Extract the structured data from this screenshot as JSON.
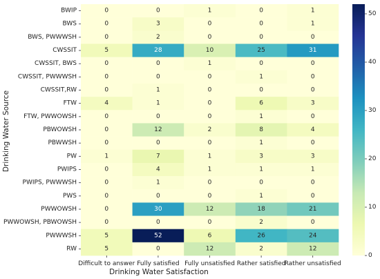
{
  "chart_data": {
    "type": "heatmap",
    "title": "",
    "xlabel": "Drinking Water Satisfaction",
    "ylabel": "Drinking Water Source",
    "x_categories": [
      "Difficult to answer",
      "Fully satisfied",
      "Fully unsatisfied",
      "Rather satisfied",
      "Rather unsatisfied"
    ],
    "y_categories": [
      "BWIP",
      "BWS",
      "BWS, PWWWSH",
      "CWSSIT",
      "CWSSIT, BWS",
      "CWSSIT, PWWWSH",
      "CWSSIT,RW",
      "FTW",
      "FTW, PWWOWSH",
      "PBWOWSH",
      "PBWWSH",
      "PW",
      "PWIPS",
      "PWIPS, PWWWSH",
      "PWS",
      "PWWOWSH",
      "PWWOWSH, PBWOWSH",
      "PWWWSH",
      "RW"
    ],
    "values": [
      [
        0,
        0,
        1,
        0,
        1
      ],
      [
        0,
        3,
        0,
        0,
        1
      ],
      [
        0,
        2,
        0,
        0,
        0
      ],
      [
        5,
        28,
        10,
        25,
        31
      ],
      [
        0,
        0,
        1,
        0,
        0
      ],
      [
        0,
        0,
        0,
        1,
        0
      ],
      [
        0,
        1,
        0,
        0,
        0
      ],
      [
        4,
        1,
        0,
        6,
        3
      ],
      [
        0,
        0,
        0,
        1,
        0
      ],
      [
        0,
        12,
        2,
        8,
        4
      ],
      [
        0,
        0,
        0,
        1,
        0
      ],
      [
        1,
        7,
        1,
        3,
        3
      ],
      [
        0,
        4,
        1,
        1,
        1
      ],
      [
        0,
        1,
        0,
        0,
        0
      ],
      [
        0,
        0,
        0,
        1,
        0
      ],
      [
        0,
        30,
        12,
        18,
        21
      ],
      [
        0,
        0,
        0,
        2,
        0
      ],
      [
        5,
        52,
        6,
        26,
        24
      ],
      [
        5,
        0,
        12,
        2,
        12
      ]
    ],
    "colormap": "YlGnBu",
    "colorbar": {
      "min": 0,
      "max": 52,
      "ticks": [
        0,
        10,
        20,
        30,
        40,
        50
      ]
    }
  }
}
